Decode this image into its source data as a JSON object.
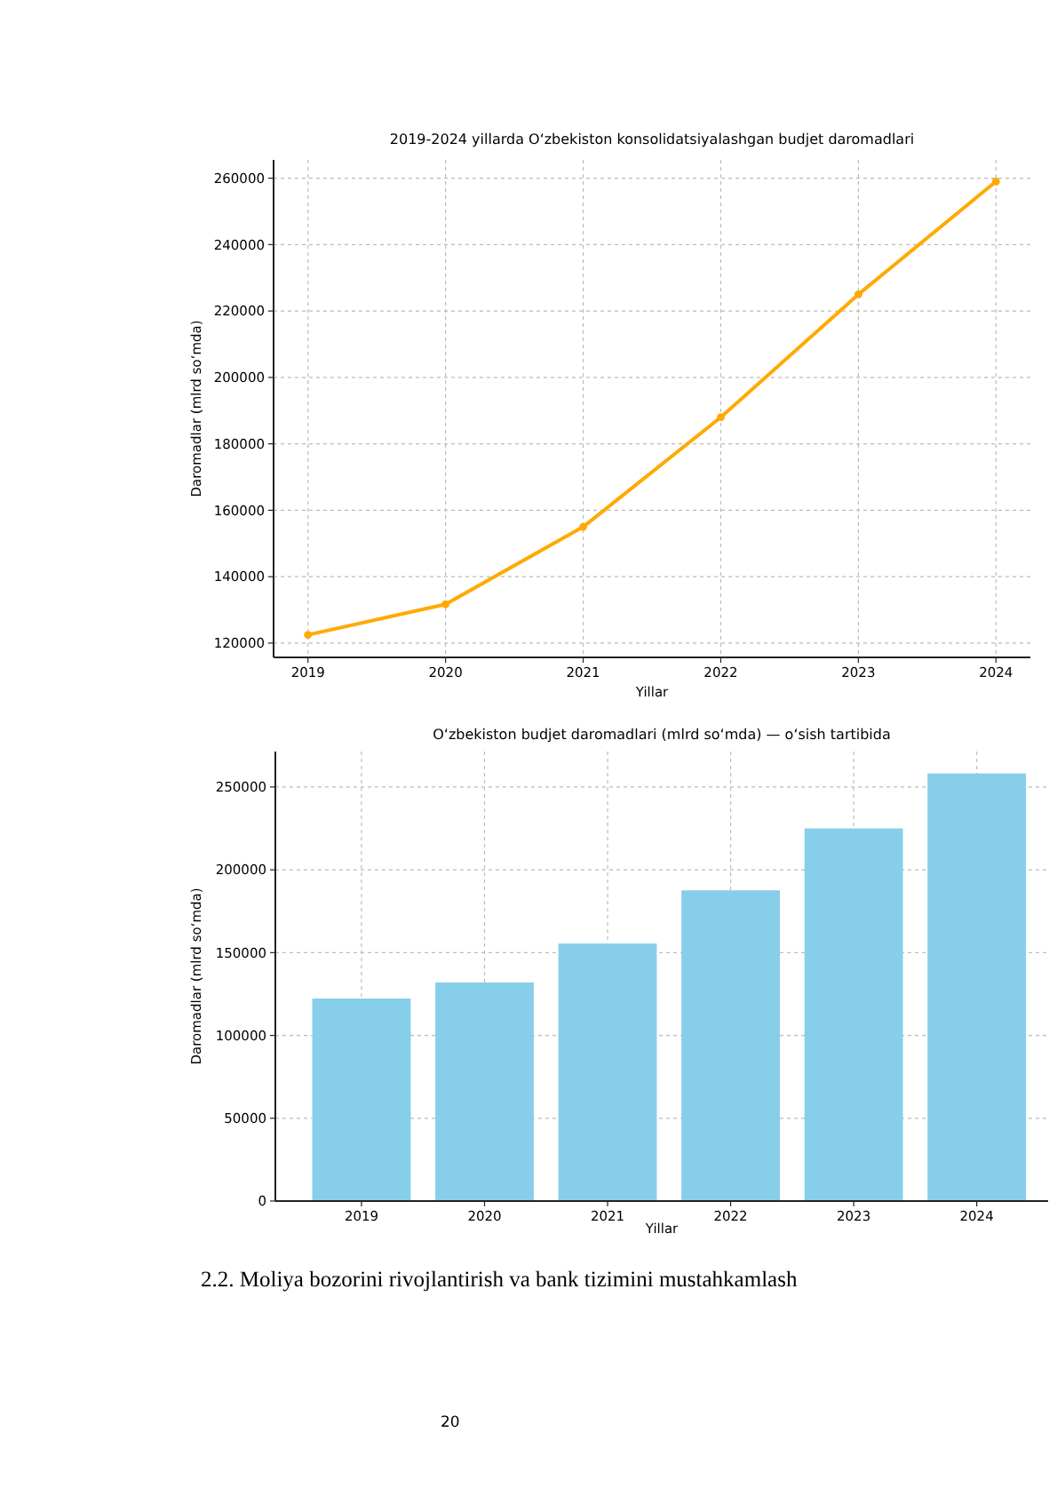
{
  "chart_data": [
    {
      "type": "line",
      "title": "2019-2024 yillarda O‘zbekiston konsolidatsiyalashgan budjet daromadlari",
      "xlabel": "Yillar",
      "ylabel": "Daromadlar (mlrd so‘mda)",
      "x": [
        2019,
        2020,
        2021,
        2022,
        2023,
        2024
      ],
      "series": [
        {
          "color": "#ffaa00",
          "values": [
            122500,
            131700,
            155000,
            188000,
            225000,
            259000
          ]
        }
      ],
      "xlim": [
        2018.75,
        2024.25
      ],
      "xticks": [
        2019,
        2020,
        2021,
        2022,
        2023,
        2024
      ],
      "ylim": [
        115700,
        265500
      ],
      "yticks": [
        120000,
        140000,
        160000,
        180000,
        200000,
        220000,
        240000,
        260000
      ],
      "grid": true,
      "marker": "circle",
      "line_style": "solid"
    },
    {
      "type": "bar",
      "title": "O‘zbekiston budjet daromadlari (mlrd so‘mda) — o‘sish tartibida",
      "xlabel": "Yillar",
      "ylabel": "Daromadlar (mlrd so‘mda)",
      "categories": [
        "2019",
        "2020",
        "2021",
        "2022",
        "2023",
        "2024"
      ],
      "values": [
        122300,
        132000,
        155500,
        187600,
        225000,
        258200
      ],
      "color": "#87ceeb",
      "ylim": [
        0,
        271400
      ],
      "yticks": [
        0,
        50000,
        100000,
        150000,
        200000,
        250000
      ],
      "grid": true,
      "annotations": [
        "2.2. Moliya bozorini rivojlantirish va bank tizimini mustahkamlash",
        "20"
      ]
    }
  ]
}
